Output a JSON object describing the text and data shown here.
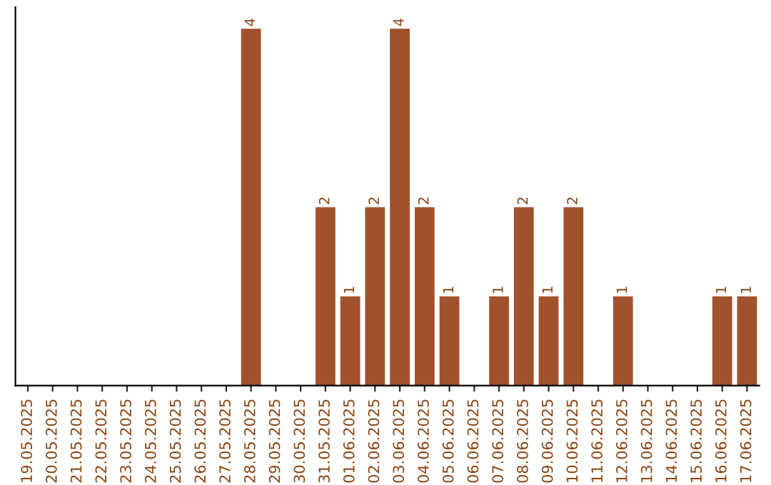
{
  "chart_data": {
    "type": "bar",
    "categories": [
      "19.05.2025",
      "20.05.2025",
      "21.05.2025",
      "22.05.2025",
      "23.05.2025",
      "24.05.2025",
      "25.05.2025",
      "26.05.2025",
      "27.05.2025",
      "28.05.2025",
      "29.05.2025",
      "30.05.2025",
      "31.05.2025",
      "01.06.2025",
      "02.06.2025",
      "03.06.2025",
      "04.06.2025",
      "05.06.2025",
      "06.06.2025",
      "07.06.2025",
      "08.06.2025",
      "09.06.2025",
      "10.06.2025",
      "11.06.2025",
      "12.06.2025",
      "13.06.2025",
      "14.06.2025",
      "15.06.2025",
      "16.06.2025",
      "17.06.2025"
    ],
    "values": [
      0,
      0,
      0,
      0,
      0,
      0,
      0,
      0,
      0,
      4,
      0,
      0,
      2,
      1,
      2,
      4,
      2,
      1,
      0,
      1,
      2,
      1,
      2,
      0,
      1,
      0,
      0,
      0,
      1,
      1
    ],
    "value_labels": [
      null,
      null,
      null,
      null,
      null,
      null,
      null,
      null,
      null,
      "4",
      null,
      null,
      "2",
      "1",
      "2",
      "4",
      "2",
      "1",
      null,
      "1",
      "2",
      "1",
      "2",
      null,
      "1",
      null,
      null,
      null,
      "1",
      "1"
    ],
    "color": "#a0522d",
    "grid": false,
    "tick_labels": "x"
  }
}
